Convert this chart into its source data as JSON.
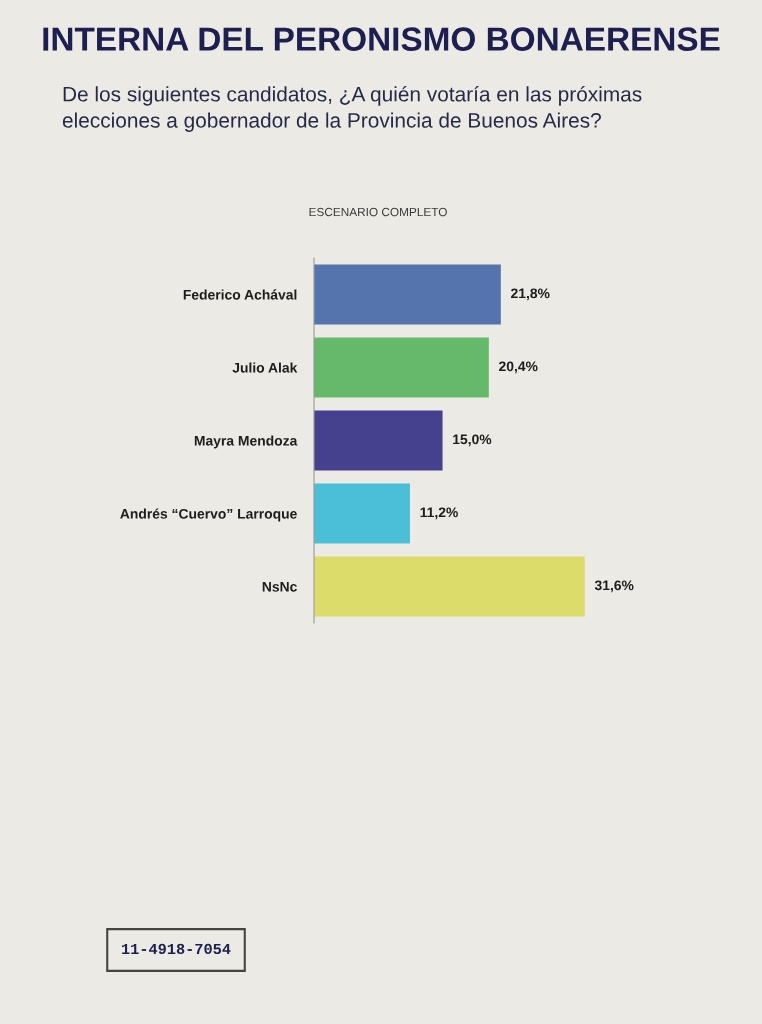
{
  "chart_data": {
    "type": "bar",
    "orientation": "horizontal",
    "title": "INTERNA DEL PERONISMO BONAERENSE",
    "subtitle": "De los siguientes candidatos, ¿A quién votaría en las próximas\nelecciones a gobernador de la Provincia de Buenos Aires?",
    "annotations": [
      "ESCENARIO COMPLETO",
      "11-4918-7054"
    ],
    "categories": [
      "Federico Achával",
      "Julio Alak",
      "Mayra Mendoza",
      "Andrés “Cuervo” Larroque",
      "NsNc"
    ],
    "values": [
      21.8,
      20.4,
      15.0,
      11.2,
      31.6
    ],
    "colors": [
      "#5573ad",
      "#66b96a",
      "#46418f",
      "#4cbfd8",
      "#dcdc6b"
    ],
    "value_labels": [
      "21,8%",
      "20,4%",
      "15,0%",
      "11,2%",
      "31,6%"
    ],
    "tick_labels": "y"
  }
}
